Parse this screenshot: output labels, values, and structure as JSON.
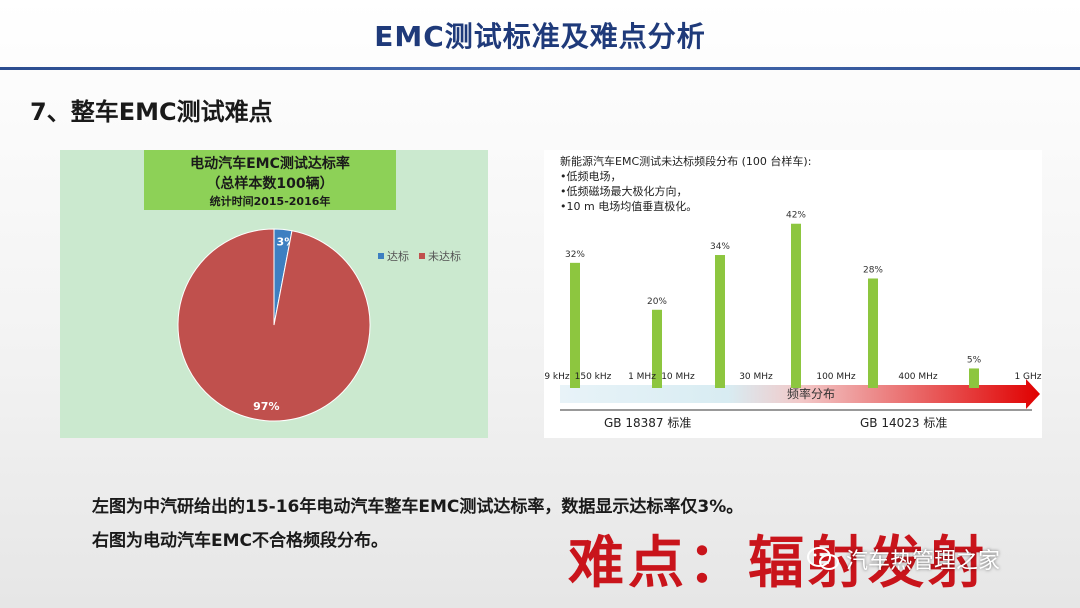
{
  "header": {
    "title": "EMC测试标准及难点分析"
  },
  "section": {
    "title": "7、整车EMC测试难点"
  },
  "left_chart": {
    "title_line1": "电动汽车EMC测试达标率",
    "title_line2": "（总样本数100辆）",
    "title_line3": "统计时间2015-2016年",
    "legend": [
      "达标",
      "未达标"
    ]
  },
  "right_chart": {
    "note_line1": "新能源汽车EMC测试未达标频段分布 (100 台样车):",
    "note_line2": "•低频电场，",
    "note_line3": "•低频磁场最大极化方向，",
    "note_line4": "•10 m 电场均值垂直极化。",
    "axis_caption": "频率分布",
    "standard_left": "GB 18387 标准",
    "standard_right": "GB 14023 标准"
  },
  "chart_data": [
    {
      "type": "pie",
      "categories": [
        "达标",
        "未达标"
      ],
      "values": [
        3,
        97
      ],
      "labels": [
        "3%",
        "97%"
      ],
      "colors": [
        "#3d7fc1",
        "#c0504d"
      ],
      "title": "电动汽车EMC测试达标率",
      "legend": "top-right"
    },
    {
      "type": "bar",
      "categories": [
        "9 kHz–150 kHz",
        "1 MHz–10 MHz",
        "10 MHz–30 MHz",
        "30 MHz–100 MHz",
        "100 MHz–400 MHz",
        "400 MHz–1 GHz"
      ],
      "values": [
        32,
        20,
        34,
        42,
        28,
        5
      ],
      "labels": [
        "32%",
        "20%",
        "34%",
        "42%",
        "28%",
        "5%"
      ],
      "x_ticks": [
        "9 kHz",
        "150 kHz",
        "1 MHz",
        "10 MHz",
        "30 MHz",
        "100 MHz",
        "400 MHz",
        "1 GHz"
      ],
      "bar_color": "#8dc63f",
      "ylim": [
        0,
        45
      ]
    }
  ],
  "bottom": {
    "line1": "左图为中汽研给出的15-16年电动汽车整车EMC测试达标率，数据显示达标率仅3%。",
    "line2": "右图为电动汽车EMC不合格频段分布。"
  },
  "stamp": {
    "text": "难点：辐射发射"
  },
  "watermark": {
    "text": "汽车热管理之家",
    "icon": "wechat-icon"
  }
}
